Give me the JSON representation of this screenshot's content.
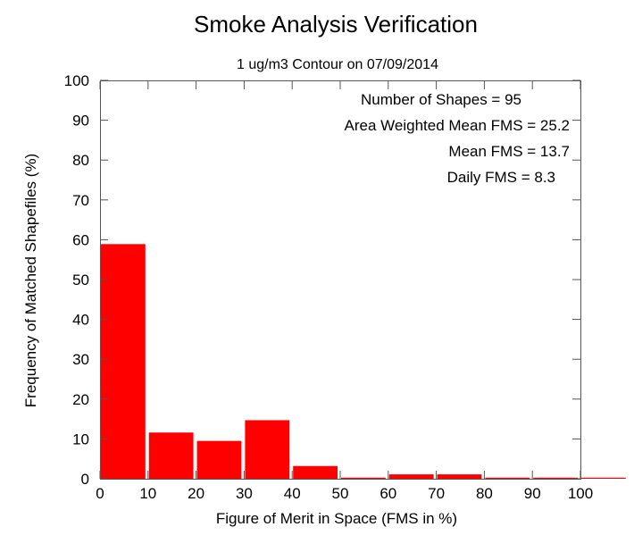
{
  "chart_data": {
    "type": "bar",
    "title": "Smoke Analysis Verification",
    "subtitle": "1 ug/m3 Contour on 07/09/2014",
    "xlabel": "Figure of Merit in Space (FMS in %)",
    "ylabel": "Frequency of Matched Shapefiles (%)",
    "xlim": [
      0,
      110
    ],
    "ylim": [
      0,
      100
    ],
    "x_ticks": [
      0,
      10,
      20,
      30,
      40,
      50,
      60,
      70,
      80,
      90,
      100
    ],
    "y_ticks": [
      0,
      10,
      20,
      30,
      40,
      50,
      60,
      70,
      80,
      90,
      100
    ],
    "bins": [
      {
        "start": 0,
        "end": 10,
        "value": 58.9
      },
      {
        "start": 10,
        "end": 20,
        "value": 11.6
      },
      {
        "start": 20,
        "end": 30,
        "value": 9.5
      },
      {
        "start": 30,
        "end": 40,
        "value": 14.7
      },
      {
        "start": 40,
        "end": 50,
        "value": 3.2
      },
      {
        "start": 50,
        "end": 60,
        "value": 0
      },
      {
        "start": 60,
        "end": 70,
        "value": 1.1
      },
      {
        "start": 70,
        "end": 80,
        "value": 1.1
      },
      {
        "start": 80,
        "end": 90,
        "value": 0
      },
      {
        "start": 90,
        "end": 100,
        "value": 0
      },
      {
        "start": 100,
        "end": 110,
        "value": 0
      }
    ],
    "bar_color": "#ff0000",
    "grid": false,
    "annotations": [
      "Number of Shapes = 95",
      "Area Weighted Mean FMS = 25.2",
      "Mean FMS = 13.7",
      "Daily FMS = 8.3"
    ]
  }
}
